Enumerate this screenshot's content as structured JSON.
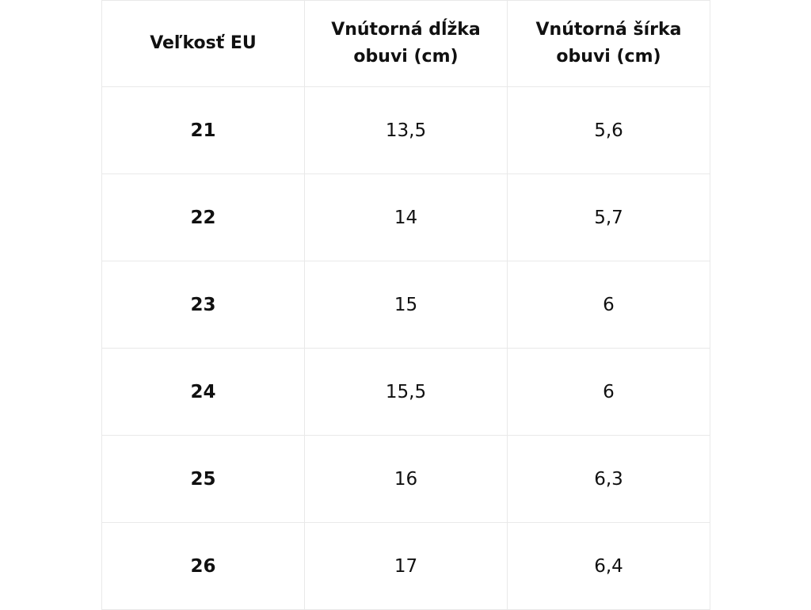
{
  "table": {
    "headers": [
      {
        "lines": [
          "Veľkosť EU"
        ]
      },
      {
        "lines": [
          "Vnútorná dĺžka",
          "obuvi (cm)"
        ]
      },
      {
        "lines": [
          "Vnútorná šírka",
          "obuvi (cm)"
        ]
      }
    ],
    "rows": [
      [
        "21",
        "13,5",
        "5,6"
      ],
      [
        "22",
        "14",
        "5,7"
      ],
      [
        "23",
        "15",
        "6"
      ],
      [
        "24",
        "15,5",
        "6"
      ],
      [
        "25",
        "16",
        "6,3"
      ],
      [
        "26",
        "17",
        "6,4"
      ]
    ]
  }
}
